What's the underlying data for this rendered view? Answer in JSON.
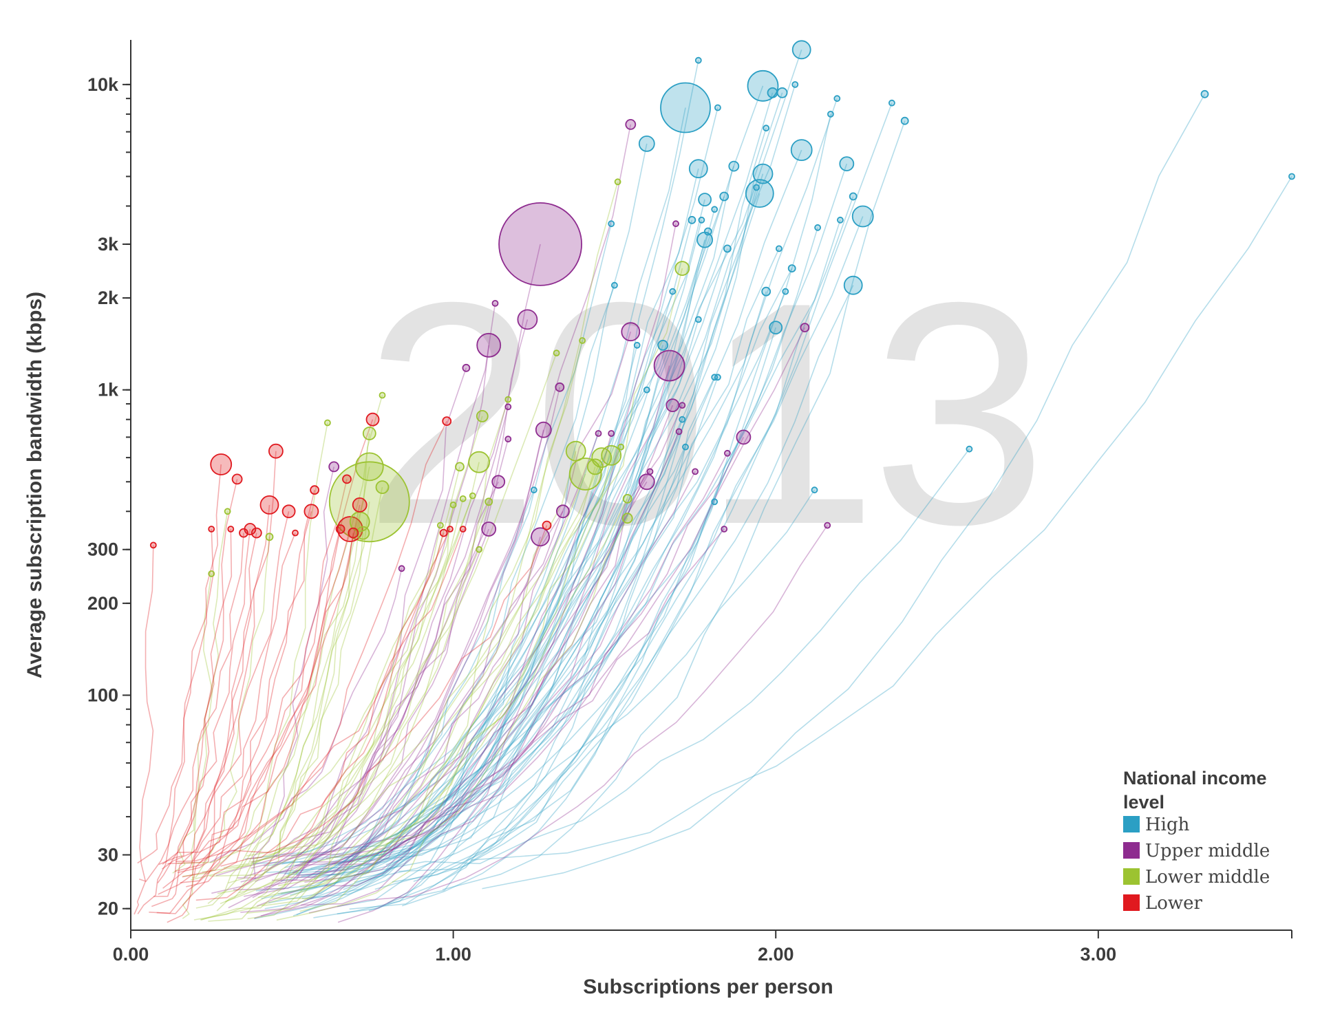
{
  "chart_data": {
    "type": "scatter",
    "subtype": "bubble-trails",
    "year_label": "2013",
    "xlabel": "Subscriptions per person",
    "ylabel": "Average subscription bandwidth (kbps)",
    "x_scale": "linear",
    "y_scale": "log",
    "xlim": [
      0,
      3.6
    ],
    "ylim": [
      17,
      14000
    ],
    "x_ticks": [
      {
        "value": 0,
        "label": "0.00"
      },
      {
        "value": 1,
        "label": "1.00"
      },
      {
        "value": 2,
        "label": "2.00"
      },
      {
        "value": 3,
        "label": "3.00"
      }
    ],
    "y_ticks": [
      {
        "value": 20,
        "label": "20"
      },
      {
        "value": 30,
        "label": "30"
      },
      {
        "value": 100,
        "label": "100"
      },
      {
        "value": 200,
        "label": "200"
      },
      {
        "value": 300,
        "label": "300"
      },
      {
        "value": 1000,
        "label": "1k"
      },
      {
        "value": 2000,
        "label": "2k"
      },
      {
        "value": 3000,
        "label": "3k"
      },
      {
        "value": 10000,
        "label": "10k"
      }
    ],
    "grid": false,
    "legend": {
      "title": "National income level",
      "title_lines": [
        "National income",
        "level"
      ],
      "placement": "bottom-right"
    },
    "series": [
      {
        "name": "High",
        "color": "#2b9fc4",
        "points": [
          [
            2.08,
            13000,
            13
          ],
          [
            1.76,
            12000,
            4
          ],
          [
            1.96,
            9900,
            22
          ],
          [
            1.99,
            9400,
            7
          ],
          [
            2.02,
            9400,
            7
          ],
          [
            2.06,
            10000,
            4
          ],
          [
            2.19,
            9000,
            4
          ],
          [
            2.36,
            8700,
            4
          ],
          [
            2.4,
            7600,
            5
          ],
          [
            1.72,
            8400,
            36
          ],
          [
            1.82,
            8400,
            4
          ],
          [
            1.97,
            7200,
            4
          ],
          [
            2.17,
            8000,
            4
          ],
          [
            1.6,
            6400,
            11
          ],
          [
            2.08,
            6100,
            15
          ],
          [
            1.76,
            5300,
            13
          ],
          [
            1.87,
            5400,
            7
          ],
          [
            1.96,
            5100,
            14
          ],
          [
            2.22,
            5500,
            10
          ],
          [
            1.94,
            4600,
            4
          ],
          [
            1.95,
            4400,
            20
          ],
          [
            1.78,
            4200,
            9
          ],
          [
            1.84,
            4300,
            6
          ],
          [
            2.24,
            4300,
            5
          ],
          [
            1.81,
            3900,
            4
          ],
          [
            1.74,
            3600,
            5
          ],
          [
            1.77,
            3600,
            4
          ],
          [
            2.27,
            3700,
            15
          ],
          [
            2.2,
            3600,
            4
          ],
          [
            1.49,
            3500,
            4
          ],
          [
            2.13,
            3400,
            4
          ],
          [
            1.79,
            3300,
            5
          ],
          [
            1.78,
            3100,
            11
          ],
          [
            1.85,
            2900,
            5
          ],
          [
            2.01,
            2900,
            4
          ],
          [
            2.05,
            2500,
            5
          ],
          [
            1.97,
            2100,
            6
          ],
          [
            2.03,
            2100,
            4
          ],
          [
            2.24,
            2200,
            13
          ],
          [
            1.68,
            2100,
            4
          ],
          [
            1.5,
            2200,
            4
          ],
          [
            1.76,
            1700,
            4
          ],
          [
            2.0,
            1600,
            9
          ],
          [
            1.57,
            1400,
            4
          ],
          [
            1.65,
            1400,
            7
          ],
          [
            1.81,
            1100,
            4
          ],
          [
            1.82,
            1100,
            4
          ],
          [
            1.6,
            1000,
            4
          ],
          [
            1.71,
            800,
            4
          ],
          [
            1.72,
            650,
            4
          ],
          [
            2.6,
            640,
            4
          ],
          [
            2.12,
            470,
            4
          ],
          [
            1.81,
            430,
            4
          ],
          [
            1.25,
            470,
            4
          ],
          [
            3.33,
            9300,
            5
          ],
          [
            3.6,
            5000,
            4
          ]
        ],
        "trail_end": [
          2.5,
          300
        ]
      },
      {
        "name": "Upper middle",
        "color": "#8e2c8f",
        "points": [
          [
            1.27,
            3000,
            60
          ],
          [
            1.55,
            7400,
            7
          ],
          [
            1.13,
            1920,
            4
          ],
          [
            1.23,
            1700,
            14
          ],
          [
            1.11,
            1400,
            17
          ],
          [
            1.55,
            1550,
            13
          ],
          [
            1.67,
            1200,
            22
          ],
          [
            1.04,
            1180,
            5
          ],
          [
            2.09,
            1600,
            6
          ],
          [
            1.33,
            1020,
            6
          ],
          [
            1.17,
            880,
            4
          ],
          [
            1.68,
            890,
            9
          ],
          [
            1.71,
            890,
            4
          ],
          [
            1.28,
            740,
            11
          ],
          [
            1.45,
            720,
            4
          ],
          [
            1.49,
            720,
            4
          ],
          [
            1.7,
            730,
            4
          ],
          [
            1.9,
            700,
            10
          ],
          [
            1.17,
            690,
            4
          ],
          [
            1.14,
            500,
            9
          ],
          [
            1.6,
            500,
            11
          ],
          [
            1.61,
            540,
            4
          ],
          [
            1.75,
            540,
            4
          ],
          [
            1.85,
            620,
            4
          ],
          [
            1.34,
            400,
            9
          ],
          [
            1.11,
            350,
            10
          ],
          [
            1.27,
            330,
            13
          ],
          [
            2.16,
            360,
            4
          ],
          [
            0.84,
            260,
            4
          ],
          [
            0.63,
            560,
            7
          ],
          [
            1.84,
            350,
            4
          ],
          [
            1.69,
            3500,
            4
          ]
        ],
        "trail_end": [
          1.65,
          45
        ]
      },
      {
        "name": "Lower middle",
        "color": "#9cc331",
        "points": [
          [
            0.74,
            430,
            58
          ],
          [
            0.74,
            560,
            20
          ],
          [
            0.74,
            720,
            9
          ],
          [
            0.78,
            480,
            9
          ],
          [
            0.78,
            960,
            4
          ],
          [
            0.61,
            780,
            4
          ],
          [
            1.09,
            820,
            8
          ],
          [
            1.08,
            580,
            15
          ],
          [
            1.38,
            630,
            14
          ],
          [
            1.41,
            530,
            23
          ],
          [
            1.46,
            600,
            14
          ],
          [
            1.49,
            610,
            14
          ],
          [
            1.44,
            560,
            11
          ],
          [
            1.52,
            650,
            4
          ],
          [
            1.54,
            440,
            6
          ],
          [
            1.54,
            380,
            7
          ],
          [
            1.02,
            560,
            6
          ],
          [
            1.03,
            440,
            4
          ],
          [
            1.06,
            450,
            4
          ],
          [
            1.11,
            430,
            5
          ],
          [
            1.08,
            300,
            4
          ],
          [
            0.96,
            360,
            4
          ],
          [
            1.0,
            420,
            4
          ],
          [
            0.71,
            370,
            14
          ],
          [
            0.72,
            340,
            9
          ],
          [
            0.43,
            330,
            5
          ],
          [
            0.3,
            400,
            4
          ],
          [
            0.25,
            250,
            4
          ],
          [
            1.71,
            2500,
            10
          ],
          [
            1.51,
            4800,
            4
          ],
          [
            1.32,
            1320,
            4
          ],
          [
            1.17,
            930,
            4
          ],
          [
            1.4,
            1450,
            4
          ]
        ],
        "trail_end": [
          0.9,
          30
        ]
      },
      {
        "name": "Lower",
        "color": "#e0191f",
        "points": [
          [
            0.28,
            570,
            15
          ],
          [
            0.33,
            510,
            7
          ],
          [
            0.45,
            630,
            10
          ],
          [
            0.43,
            420,
            13
          ],
          [
            0.49,
            400,
            9
          ],
          [
            0.56,
            400,
            10
          ],
          [
            0.57,
            470,
            6
          ],
          [
            0.67,
            510,
            6
          ],
          [
            0.71,
            420,
            10
          ],
          [
            0.75,
            800,
            9
          ],
          [
            0.68,
            350,
            18
          ],
          [
            0.69,
            340,
            7
          ],
          [
            0.65,
            350,
            6
          ],
          [
            0.37,
            350,
            8
          ],
          [
            0.35,
            340,
            6
          ],
          [
            0.39,
            340,
            7
          ],
          [
            0.31,
            350,
            4
          ],
          [
            0.25,
            350,
            4
          ],
          [
            0.51,
            340,
            4
          ],
          [
            0.97,
            340,
            5
          ],
          [
            0.99,
            350,
            4
          ],
          [
            1.03,
            350,
            4
          ],
          [
            1.29,
            360,
            6
          ],
          [
            0.98,
            790,
            6
          ],
          [
            0.07,
            310,
            4
          ]
        ],
        "trail_end": [
          0.02,
          30
        ]
      }
    ]
  }
}
